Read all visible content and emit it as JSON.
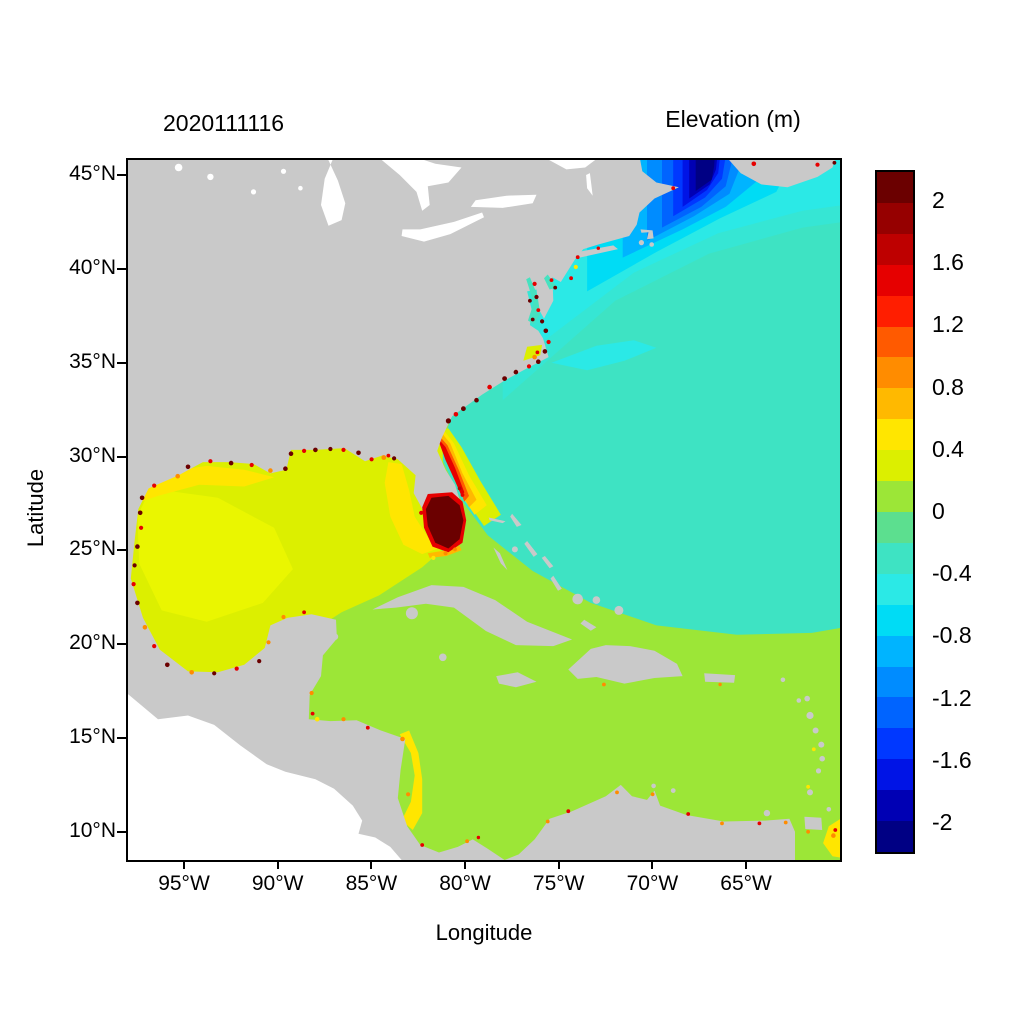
{
  "figure": {
    "date_title": "2020111116",
    "colorbar_title": "Elevation (m)"
  },
  "axes": {
    "x": {
      "label": "Longitude",
      "ticks": [
        "95°W",
        "90°W",
        "85°W",
        "80°W",
        "75°W",
        "70°W",
        "65°W"
      ]
    },
    "y": {
      "label": "Latitude",
      "ticks": [
        "45°N",
        "40°N",
        "35°N",
        "30°N",
        "25°N",
        "20°N",
        "15°N",
        "10°N"
      ]
    }
  },
  "colorbar": {
    "labels": [
      "2",
      "1.6",
      "1.2",
      "0.8",
      "0.4",
      "0",
      "-0.4",
      "-0.8",
      "-1.2",
      "-1.6",
      "-2"
    ],
    "colors": [
      "#6B0000",
      "#960000",
      "#BE0000",
      "#E60000",
      "#FF1E00",
      "#FF5A00",
      "#FF8C00",
      "#FFB900",
      "#FFE600",
      "#DCEF00",
      "#9CE637",
      "#5CDF8F",
      "#3EE3C3",
      "#2BE9E6",
      "#00DCF5",
      "#00B4FF",
      "#008CFF",
      "#0064FF",
      "#0038FF",
      "#0014E6",
      "#0000B4",
      "#000084"
    ]
  },
  "map_colors": {
    "land": "#C9C9C9",
    "no_data": "#FFFFFF"
  },
  "chart_data": {
    "type": "heatmap",
    "title": "2020111116",
    "colorbar_title": "Elevation (m)",
    "xlabel": "Longitude",
    "ylabel": "Latitude",
    "x_tick_labels": [
      "95°W",
      "90°W",
      "85°W",
      "80°W",
      "75°W",
      "70°W",
      "65°W"
    ],
    "y_tick_labels": [
      "45°N",
      "40°N",
      "35°N",
      "30°N",
      "25°N",
      "20°N",
      "15°N",
      "10°N"
    ],
    "lon_range": [
      -98,
      -60
    ],
    "lat_range": [
      8.5,
      45.8
    ],
    "colorbar_ticks": [
      2,
      1.6,
      1.2,
      0.8,
      0.4,
      0,
      -0.4,
      -0.8,
      -1.2,
      -1.6,
      -2
    ],
    "colorbar_range": [
      -2.2,
      2.2
    ],
    "units": "m",
    "grid": false,
    "legend_position": "right colorbar",
    "regions": [
      {
        "name": "Gulf of Mexico",
        "elevation_m": 0.3
      },
      {
        "name": "Caribbean Sea",
        "elevation_m": 0.1
      },
      {
        "name": "Western North Atlantic open ocean",
        "elevation_m": -0.3
      },
      {
        "name": "New England shelf",
        "elevation_m": -0.7
      },
      {
        "name": "Gulf of Maine / Bay of Fundy",
        "elevation_m": -2.2
      },
      {
        "name": "Northeast Florida shelf bands",
        "elevation_m": 0.8
      },
      {
        "name": "South Florida coastal zone",
        "elevation_m": 2.2
      },
      {
        "name": "US Southeast coastal fringe",
        "elevation_m": 2.0
      },
      {
        "name": "Texas-Louisiana coastal band",
        "elevation_m": 0.5
      },
      {
        "name": "Nicaragua shelf band",
        "elevation_m": 0.5
      },
      {
        "name": "Land",
        "elevation_m": "no data (gray)"
      },
      {
        "name": "Pacific outside model domain",
        "elevation_m": "no data (white)"
      }
    ]
  }
}
